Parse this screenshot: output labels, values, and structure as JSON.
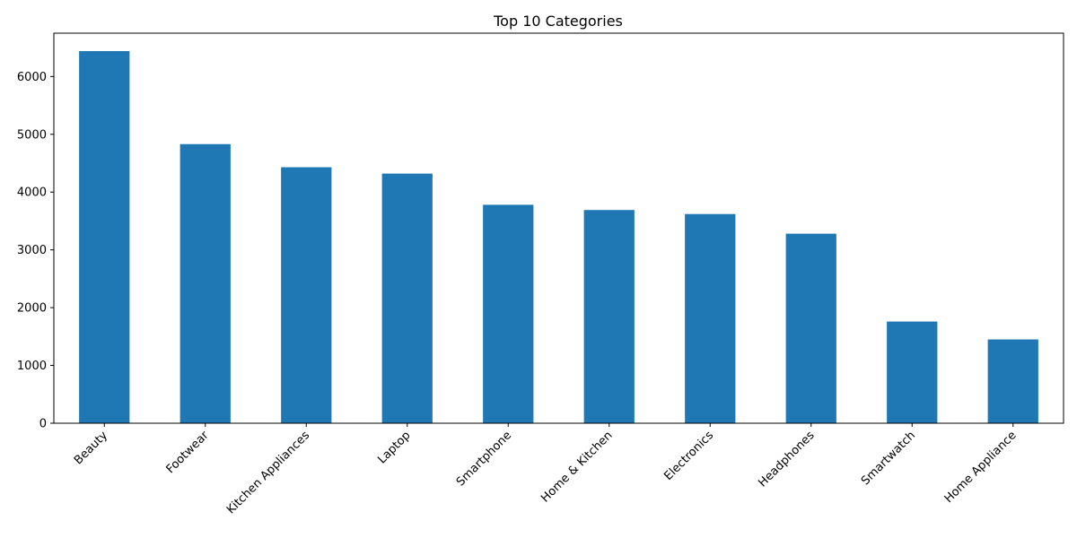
{
  "chart_data": {
    "type": "bar",
    "title": "Top 10 Categories",
    "xlabel": "",
    "ylabel": "",
    "categories": [
      "Beauty",
      "Footwear",
      "Kitchen Appliances",
      "Laptop",
      "Smartphone",
      "Home & Kitchen",
      "Electronics",
      "Headphones",
      "Smartwatch",
      "Home Appliance"
    ],
    "values": [
      6440,
      4830,
      4430,
      4320,
      3780,
      3690,
      3620,
      3280,
      1760,
      1450
    ],
    "ylim": [
      0,
      6750
    ],
    "yticks": [
      0,
      1000,
      2000,
      3000,
      4000,
      5000,
      6000
    ],
    "ytick_labels": [
      "0",
      "1000",
      "2000",
      "3000",
      "4000",
      "5000",
      "6000"
    ],
    "grid": false,
    "legend": false,
    "colors": {
      "bar": "#1f77b4"
    }
  }
}
